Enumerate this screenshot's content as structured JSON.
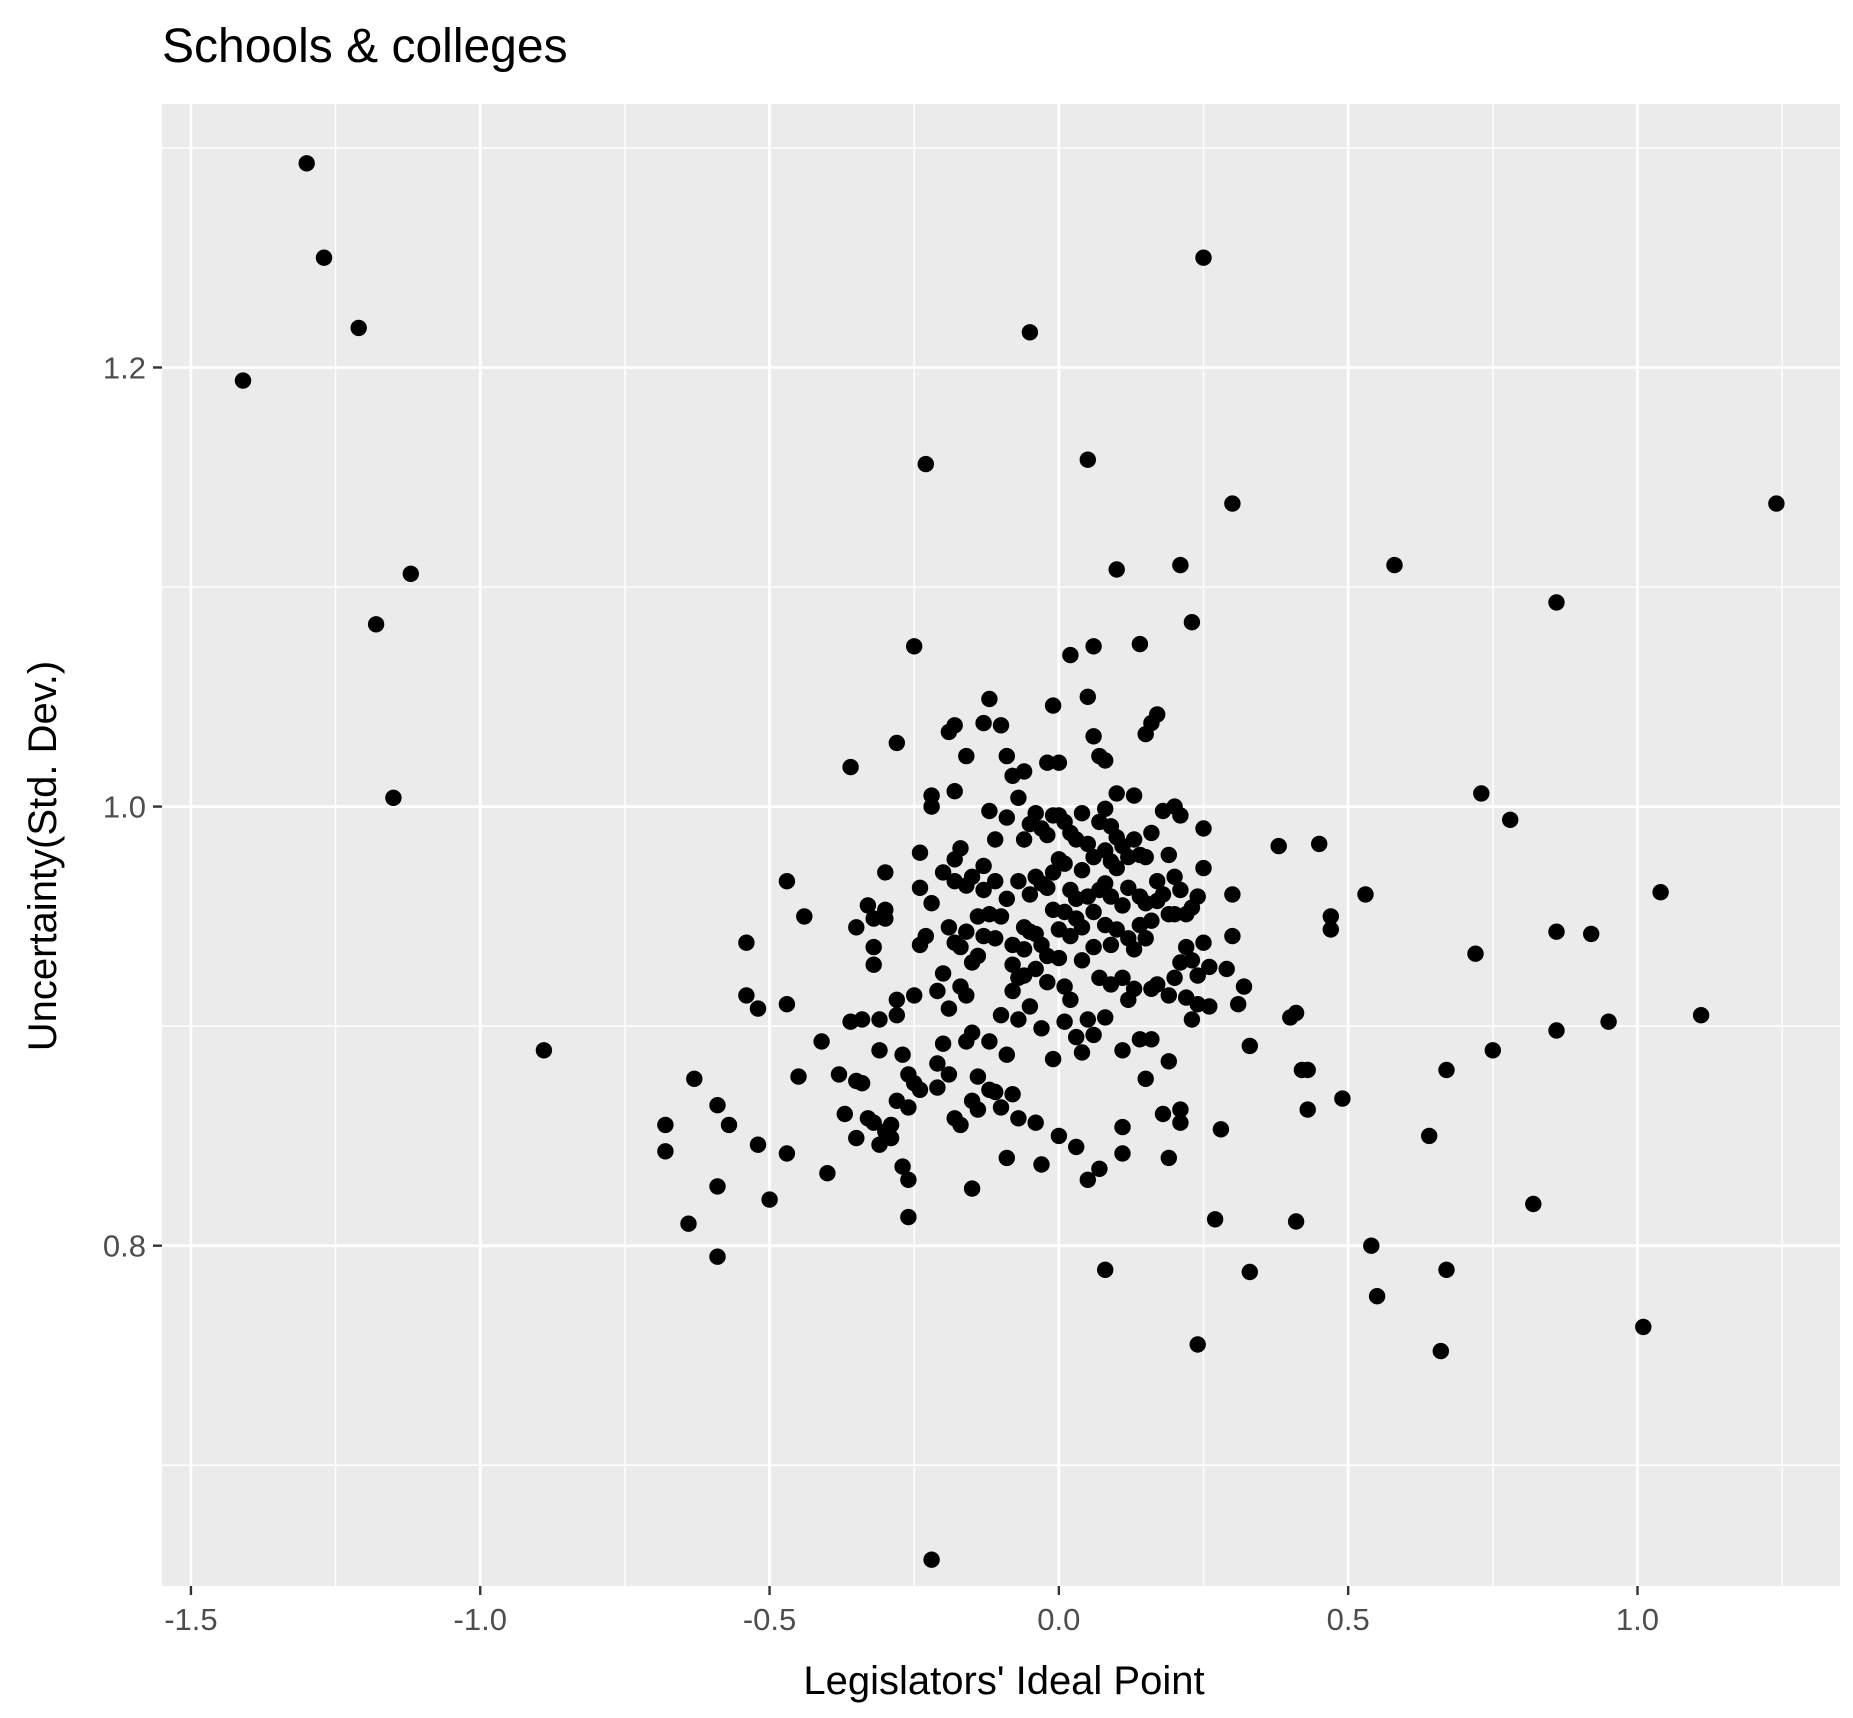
{
  "chart_data": {
    "type": "scatter",
    "title": "Schools & colleges",
    "xlabel": "Legislators' Ideal Point",
    "ylabel": "Uncertainty(Std. Dev.)",
    "xlim": [
      -1.55,
      1.35
    ],
    "ylim": [
      0.645,
      1.32
    ],
    "x_ticks": [
      -1.5,
      -1.0,
      -0.5,
      0.0,
      0.5,
      1.0
    ],
    "x_tick_labels": [
      "-1.5",
      "-1.0",
      "-0.5",
      "0.0",
      "0.5",
      "1.0"
    ],
    "y_ticks": [
      0.8,
      1.0,
      1.2
    ],
    "y_tick_labels": [
      "0.8",
      "1.0",
      "1.2"
    ],
    "grid": true,
    "colors": {
      "panel": "#ebebeb",
      "grid": "#ffffff",
      "point": "#000000",
      "tick": "#333333"
    },
    "points": [
      [
        -1.3,
        1.293
      ],
      [
        -1.27,
        1.25
      ],
      [
        -1.21,
        1.218
      ],
      [
        -1.41,
        1.194
      ],
      [
        -1.12,
        1.106
      ],
      [
        -1.18,
        1.083
      ],
      [
        -1.15,
        1.004
      ],
      [
        -0.89,
        0.889
      ],
      [
        -0.68,
        0.855
      ],
      [
        -0.68,
        0.843
      ],
      [
        -0.64,
        0.81
      ],
      [
        -0.63,
        0.876
      ],
      [
        -0.59,
        0.864
      ],
      [
        -0.59,
        0.827
      ],
      [
        -0.59,
        0.795
      ],
      [
        -0.57,
        0.855
      ],
      [
        -0.54,
        0.938
      ],
      [
        -0.54,
        0.914
      ],
      [
        -0.52,
        0.908
      ],
      [
        -0.52,
        0.846
      ],
      [
        -0.5,
        0.821
      ],
      [
        -0.47,
        0.966
      ],
      [
        -0.47,
        0.91
      ],
      [
        -0.47,
        0.842
      ],
      [
        -0.45,
        0.877
      ],
      [
        -0.44,
        0.95
      ],
      [
        -0.41,
        0.893
      ],
      [
        -0.4,
        0.833
      ],
      [
        -0.38,
        0.878
      ],
      [
        -0.37,
        0.86
      ],
      [
        -0.36,
        1.018
      ],
      [
        -0.36,
        0.902
      ],
      [
        -0.35,
        0.945
      ],
      [
        -0.35,
        0.875
      ],
      [
        -0.35,
        0.849
      ],
      [
        -0.34,
        0.903
      ],
      [
        -0.34,
        0.874
      ],
      [
        -0.33,
        0.955
      ],
      [
        -0.33,
        0.858
      ],
      [
        -0.32,
        0.949
      ],
      [
        -0.32,
        0.936
      ],
      [
        -0.32,
        0.928
      ],
      [
        -0.32,
        0.856
      ],
      [
        -0.31,
        0.903
      ],
      [
        -0.31,
        0.889
      ],
      [
        -0.31,
        0.846
      ],
      [
        -0.3,
        0.97
      ],
      [
        -0.3,
        0.953
      ],
      [
        -0.3,
        0.949
      ],
      [
        -0.3,
        0.852
      ],
      [
        -0.29,
        0.855
      ],
      [
        -0.29,
        0.849
      ],
      [
        -0.28,
        1.029
      ],
      [
        -0.28,
        0.912
      ],
      [
        -0.28,
        0.905
      ],
      [
        -0.28,
        0.866
      ],
      [
        -0.27,
        0.887
      ],
      [
        -0.27,
        0.836
      ],
      [
        -0.26,
        0.878
      ],
      [
        -0.26,
        0.83
      ],
      [
        -0.26,
        0.813
      ],
      [
        -0.26,
        0.863
      ],
      [
        -0.25,
        1.073
      ],
      [
        -0.25,
        0.914
      ],
      [
        -0.25,
        0.874
      ],
      [
        -0.24,
        0.979
      ],
      [
        -0.24,
        0.963
      ],
      [
        -0.24,
        0.937
      ],
      [
        -0.24,
        0.871
      ],
      [
        -0.23,
        1.156
      ],
      [
        -0.23,
        0.941
      ],
      [
        -0.22,
        1.005
      ],
      [
        -0.22,
        1.0
      ],
      [
        -0.22,
        0.956
      ],
      [
        -0.21,
        0.916
      ],
      [
        -0.21,
        0.883
      ],
      [
        -0.21,
        0.872
      ],
      [
        -0.22,
        0.657
      ],
      [
        -0.2,
        0.97
      ],
      [
        -0.2,
        0.924
      ],
      [
        -0.2,
        0.892
      ],
      [
        -0.19,
        1.034
      ],
      [
        -0.19,
        0.945
      ],
      [
        -0.19,
        0.908
      ],
      [
        -0.19,
        0.878
      ],
      [
        -0.18,
        1.037
      ],
      [
        -0.18,
        1.007
      ],
      [
        -0.18,
        0.976
      ],
      [
        -0.18,
        0.966
      ],
      [
        -0.18,
        0.938
      ],
      [
        -0.18,
        0.858
      ],
      [
        -0.17,
        0.981
      ],
      [
        -0.17,
        0.936
      ],
      [
        -0.17,
        0.918
      ],
      [
        -0.17,
        0.855
      ],
      [
        -0.16,
        1.023
      ],
      [
        -0.16,
        0.964
      ],
      [
        -0.16,
        0.943
      ],
      [
        -0.16,
        0.914
      ],
      [
        -0.16,
        0.893
      ],
      [
        -0.15,
        0.968
      ],
      [
        -0.15,
        0.929
      ],
      [
        -0.15,
        0.897
      ],
      [
        -0.15,
        0.866
      ],
      [
        -0.15,
        0.826
      ],
      [
        -0.14,
        0.95
      ],
      [
        -0.14,
        0.932
      ],
      [
        -0.14,
        0.877
      ],
      [
        -0.14,
        0.862
      ],
      [
        -0.13,
        1.038
      ],
      [
        -0.13,
        0.973
      ],
      [
        -0.13,
        0.962
      ],
      [
        -0.13,
        0.941
      ],
      [
        -0.12,
        1.049
      ],
      [
        -0.12,
        0.998
      ],
      [
        -0.12,
        0.951
      ],
      [
        -0.12,
        0.893
      ],
      [
        -0.12,
        0.871
      ],
      [
        -0.11,
        0.985
      ],
      [
        -0.11,
        0.966
      ],
      [
        -0.11,
        0.94
      ],
      [
        -0.11,
        0.87
      ],
      [
        -0.1,
        1.037
      ],
      [
        -0.1,
        0.95
      ],
      [
        -0.1,
        0.905
      ],
      [
        -0.1,
        0.863
      ],
      [
        -0.09,
        1.023
      ],
      [
        -0.09,
        0.995
      ],
      [
        -0.09,
        0.958
      ],
      [
        -0.09,
        0.887
      ],
      [
        -0.09,
        0.84
      ],
      [
        -0.08,
        1.014
      ],
      [
        -0.08,
        0.937
      ],
      [
        -0.08,
        0.928
      ],
      [
        -0.08,
        0.916
      ],
      [
        -0.08,
        0.869
      ],
      [
        -0.07,
        1.004
      ],
      [
        -0.07,
        0.966
      ],
      [
        -0.07,
        0.922
      ],
      [
        -0.07,
        0.903
      ],
      [
        -0.07,
        0.858
      ],
      [
        -0.06,
        1.016
      ],
      [
        -0.06,
        0.985
      ],
      [
        -0.06,
        0.945
      ],
      [
        -0.06,
        0.935
      ],
      [
        -0.06,
        0.923
      ],
      [
        -0.05,
        1.216
      ],
      [
        -0.05,
        0.992
      ],
      [
        -0.05,
        0.96
      ],
      [
        -0.05,
        0.943
      ],
      [
        -0.05,
        0.909
      ],
      [
        -0.04,
        0.997
      ],
      [
        -0.04,
        0.968
      ],
      [
        -0.04,
        0.942
      ],
      [
        -0.04,
        0.926
      ],
      [
        -0.04,
        0.856
      ],
      [
        -0.03,
        0.99
      ],
      [
        -0.03,
        0.965
      ],
      [
        -0.03,
        0.937
      ],
      [
        -0.03,
        0.899
      ],
      [
        -0.03,
        0.837
      ],
      [
        -0.02,
        1.02
      ],
      [
        -0.02,
        0.987
      ],
      [
        -0.02,
        0.963
      ],
      [
        -0.02,
        0.932
      ],
      [
        -0.02,
        0.92
      ],
      [
        -0.01,
        1.046
      ],
      [
        -0.01,
        0.996
      ],
      [
        -0.01,
        0.97
      ],
      [
        -0.01,
        0.953
      ],
      [
        -0.01,
        0.885
      ],
      [
        0.0,
        1.02
      ],
      [
        0.0,
        0.996
      ],
      [
        0.0,
        0.976
      ],
      [
        0.0,
        0.944
      ],
      [
        0.0,
        0.931
      ],
      [
        0.0,
        0.85
      ],
      [
        0.01,
        0.993
      ],
      [
        0.01,
        0.974
      ],
      [
        0.01,
        0.952
      ],
      [
        0.01,
        0.918
      ],
      [
        0.01,
        0.902
      ],
      [
        0.02,
        1.069
      ],
      [
        0.02,
        0.988
      ],
      [
        0.02,
        0.962
      ],
      [
        0.02,
        0.941
      ],
      [
        0.02,
        0.912
      ],
      [
        0.03,
        0.985
      ],
      [
        0.03,
        0.958
      ],
      [
        0.03,
        0.949
      ],
      [
        0.03,
        0.895
      ],
      [
        0.03,
        0.845
      ],
      [
        0.04,
        0.997
      ],
      [
        0.04,
        0.971
      ],
      [
        0.04,
        0.945
      ],
      [
        0.04,
        0.93
      ],
      [
        0.04,
        0.888
      ],
      [
        0.05,
        1.158
      ],
      [
        0.05,
        1.05
      ],
      [
        0.05,
        0.983
      ],
      [
        0.05,
        0.959
      ],
      [
        0.05,
        0.903
      ],
      [
        0.05,
        0.83
      ],
      [
        0.06,
        1.073
      ],
      [
        0.06,
        1.032
      ],
      [
        0.06,
        0.977
      ],
      [
        0.06,
        0.952
      ],
      [
        0.06,
        0.936
      ],
      [
        0.06,
        0.896
      ],
      [
        0.07,
        1.023
      ],
      [
        0.07,
        0.993
      ],
      [
        0.07,
        0.962
      ],
      [
        0.07,
        0.922
      ],
      [
        0.07,
        0.835
      ],
      [
        0.08,
        1.021
      ],
      [
        0.08,
        0.999
      ],
      [
        0.08,
        0.98
      ],
      [
        0.08,
        0.965
      ],
      [
        0.08,
        0.946
      ],
      [
        0.08,
        0.904
      ],
      [
        0.08,
        0.789
      ],
      [
        0.09,
        0.991
      ],
      [
        0.09,
        0.975
      ],
      [
        0.09,
        0.959
      ],
      [
        0.09,
        0.937
      ],
      [
        0.09,
        0.919
      ],
      [
        0.1,
        1.108
      ],
      [
        0.1,
        1.006
      ],
      [
        0.1,
        0.986
      ],
      [
        0.1,
        0.972
      ],
      [
        0.1,
        0.944
      ],
      [
        0.11,
        0.982
      ],
      [
        0.11,
        0.955
      ],
      [
        0.11,
        0.922
      ],
      [
        0.11,
        0.889
      ],
      [
        0.11,
        0.854
      ],
      [
        0.11,
        0.842
      ],
      [
        0.12,
        0.977
      ],
      [
        0.12,
        0.963
      ],
      [
        0.12,
        0.94
      ],
      [
        0.12,
        0.912
      ],
      [
        0.13,
        1.005
      ],
      [
        0.13,
        0.985
      ],
      [
        0.13,
        0.935
      ],
      [
        0.13,
        0.917
      ],
      [
        0.14,
        1.074
      ],
      [
        0.14,
        0.978
      ],
      [
        0.14,
        0.959
      ],
      [
        0.14,
        0.946
      ],
      [
        0.14,
        0.894
      ],
      [
        0.15,
        1.033
      ],
      [
        0.15,
        0.977
      ],
      [
        0.15,
        0.956
      ],
      [
        0.15,
        0.94
      ],
      [
        0.15,
        0.876
      ],
      [
        0.16,
        1.038
      ],
      [
        0.16,
        0.988
      ],
      [
        0.16,
        0.948
      ],
      [
        0.16,
        0.917
      ],
      [
        0.16,
        0.894
      ],
      [
        0.17,
        1.042
      ],
      [
        0.17,
        0.966
      ],
      [
        0.17,
        0.957
      ],
      [
        0.17,
        0.919
      ],
      [
        0.18,
        0.998
      ],
      [
        0.18,
        0.96
      ],
      [
        0.18,
        0.86
      ],
      [
        0.19,
        0.978
      ],
      [
        0.19,
        0.951
      ],
      [
        0.19,
        0.914
      ],
      [
        0.19,
        0.884
      ],
      [
        0.19,
        0.84
      ],
      [
        0.2,
        1.0
      ],
      [
        0.2,
        0.968
      ],
      [
        0.2,
        0.951
      ],
      [
        0.2,
        0.922
      ],
      [
        0.21,
        1.11
      ],
      [
        0.21,
        0.996
      ],
      [
        0.21,
        0.962
      ],
      [
        0.21,
        0.929
      ],
      [
        0.21,
        0.862
      ],
      [
        0.21,
        0.856
      ],
      [
        0.22,
        0.951
      ],
      [
        0.22,
        0.936
      ],
      [
        0.22,
        0.913
      ],
      [
        0.23,
        1.084
      ],
      [
        0.23,
        0.954
      ],
      [
        0.23,
        0.93
      ],
      [
        0.23,
        0.903
      ],
      [
        0.24,
        0.959
      ],
      [
        0.24,
        0.923
      ],
      [
        0.24,
        0.91
      ],
      [
        0.24,
        0.755
      ],
      [
        0.25,
        1.25
      ],
      [
        0.25,
        0.99
      ],
      [
        0.25,
        0.972
      ],
      [
        0.25,
        0.938
      ],
      [
        0.26,
        0.927
      ],
      [
        0.26,
        0.909
      ],
      [
        0.27,
        0.812
      ],
      [
        0.28,
        0.853
      ],
      [
        0.29,
        0.926
      ],
      [
        0.3,
        1.138
      ],
      [
        0.3,
        0.96
      ],
      [
        0.3,
        0.941
      ],
      [
        0.31,
        0.91
      ],
      [
        0.32,
        0.918
      ],
      [
        0.33,
        0.891
      ],
      [
        0.33,
        0.788
      ],
      [
        0.38,
        0.982
      ],
      [
        0.4,
        0.904
      ],
      [
        0.41,
        0.906
      ],
      [
        0.41,
        0.811
      ],
      [
        0.42,
        0.88
      ],
      [
        0.43,
        0.88
      ],
      [
        0.43,
        0.862
      ],
      [
        0.45,
        0.983
      ],
      [
        0.47,
        0.95
      ],
      [
        0.47,
        0.944
      ],
      [
        0.49,
        0.867
      ],
      [
        0.53,
        0.96
      ],
      [
        0.54,
        0.8
      ],
      [
        0.55,
        0.777
      ],
      [
        0.58,
        1.11
      ],
      [
        0.64,
        0.85
      ],
      [
        0.66,
        0.752
      ],
      [
        0.67,
        0.88
      ],
      [
        0.67,
        0.789
      ],
      [
        0.72,
        0.933
      ],
      [
        0.73,
        1.006
      ],
      [
        0.75,
        0.889
      ],
      [
        0.78,
        0.994
      ],
      [
        0.82,
        0.819
      ],
      [
        0.86,
        1.093
      ],
      [
        0.86,
        0.943
      ],
      [
        0.86,
        0.898
      ],
      [
        0.92,
        0.942
      ],
      [
        0.95,
        0.902
      ],
      [
        1.01,
        0.763
      ],
      [
        1.04,
        0.961
      ],
      [
        1.11,
        0.905
      ],
      [
        1.24,
        1.138
      ]
    ]
  }
}
